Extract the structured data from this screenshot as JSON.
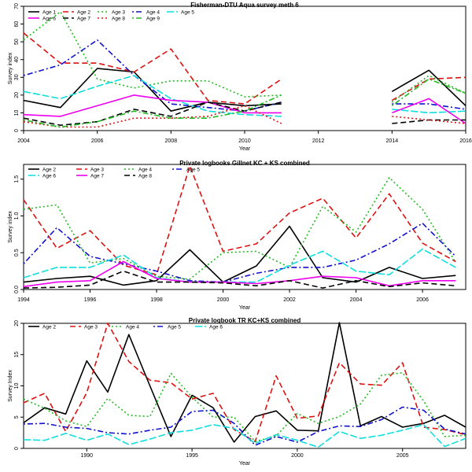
{
  "chart_data": [
    {
      "type": "line",
      "title": "Fisherman-DTU Aqua survey meth 6",
      "xlabel": "Year",
      "ylabel": "Survey index",
      "xlim": [
        2004,
        2016
      ],
      "ylim": [
        0,
        70
      ],
      "xticks": [
        2004,
        2006,
        2008,
        2010,
        2012,
        2014,
        2016
      ],
      "yticks": [
        0,
        10,
        20,
        30,
        40,
        50,
        60,
        70
      ],
      "legend_position": "top-left",
      "legend_columns": 5,
      "x": [
        2004,
        2005,
        2006,
        2007,
        2008,
        2009,
        2010,
        2011,
        2012,
        2013,
        2014,
        2015,
        2016
      ],
      "series": [
        {
          "name": "Age 1",
          "color": "#000000",
          "dash": "solid",
          "values": [
            17,
            13,
            35,
            33,
            11,
            16,
            14,
            15,
            null,
            null,
            22,
            34,
            14
          ]
        },
        {
          "name": "Age 2",
          "color": "#dd1111",
          "dash": "long",
          "values": [
            55,
            38,
            38,
            33,
            46,
            17,
            15,
            29,
            null,
            null,
            17,
            29,
            30
          ]
        },
        {
          "name": "Age 3",
          "color": "#22bb22",
          "dash": "dot",
          "values": [
            51,
            67,
            29,
            24,
            28,
            28,
            19,
            20,
            null,
            null,
            16,
            31,
            21
          ]
        },
        {
          "name": "Age 4",
          "color": "#1111cc",
          "dash": "dotdash",
          "values": [
            31,
            37,
            51,
            31,
            15,
            13,
            11,
            16,
            null,
            null,
            15,
            15,
            12
          ]
        },
        {
          "name": "Age 5",
          "color": "#11dddd",
          "dash": "longdash",
          "values": [
            22,
            18,
            25,
            31,
            18,
            11,
            9,
            8,
            null,
            null,
            12,
            10,
            11
          ]
        },
        {
          "name": "Age 6",
          "color": "#ee00ee",
          "dash": "solid",
          "values": [
            9,
            8,
            14,
            20,
            17,
            16,
            10,
            10,
            null,
            null,
            10,
            18,
            4
          ]
        },
        {
          "name": "Age 7",
          "color": "#000000",
          "dash": "long",
          "values": [
            7,
            3,
            5,
            12,
            8,
            16,
            11,
            16,
            null,
            null,
            4,
            6,
            6
          ]
        },
        {
          "name": "Age 8",
          "color": "#dd1111",
          "dash": "dot",
          "values": [
            5,
            2,
            2,
            7,
            7,
            8,
            14,
            4,
            null,
            null,
            8,
            6,
            4
          ]
        },
        {
          "name": "Age 9",
          "color": "#22bb22",
          "dash": "dotdash",
          "values": [
            6,
            2,
            5,
            11,
            7,
            7,
            11,
            20,
            null,
            null,
            14,
            29,
            21
          ]
        }
      ]
    },
    {
      "type": "line",
      "title": "Private logbooks Gillnet KC + KS combined",
      "xlabel": "Year",
      "ylabel": "Survey index",
      "xlim": [
        1994,
        2007.3
      ],
      "ylim": [
        0,
        1.7
      ],
      "xticks": [
        1994,
        1996,
        1998,
        2000,
        2002,
        2004,
        2006
      ],
      "yticks": [
        0.0,
        0.5,
        1.0,
        1.5
      ],
      "legend_position": "top-left",
      "legend_columns": 4,
      "x": [
        1994,
        1995,
        1996,
        1997,
        1998,
        1999,
        2000,
        2001,
        2002,
        2003,
        2004,
        2005,
        2006,
        2007
      ],
      "series": [
        {
          "name": "Age 2",
          "color": "#000000",
          "dash": "solid",
          "values": [
            0.1,
            0.15,
            0.18,
            0.06,
            0.12,
            0.54,
            0.1,
            0.32,
            0.86,
            0.16,
            0.1,
            0.3,
            0.15,
            0.19
          ]
        },
        {
          "name": "Age 3",
          "color": "#dd1111",
          "dash": "long",
          "values": [
            1.22,
            0.56,
            0.8,
            0.33,
            0.2,
            1.68,
            0.52,
            0.62,
            1.04,
            1.24,
            0.7,
            1.3,
            0.63,
            0.38
          ]
        },
        {
          "name": "Age 4",
          "color": "#22bb22",
          "dash": "dot",
          "values": [
            1.09,
            1.15,
            0.36,
            0.42,
            0.18,
            0.14,
            0.5,
            0.52,
            0.3,
            1.13,
            0.78,
            1.52,
            1.09,
            0.37
          ]
        },
        {
          "name": "Age 5",
          "color": "#1111cc",
          "dash": "dotdash",
          "values": [
            0.35,
            0.84,
            0.45,
            0.35,
            0.25,
            0.12,
            0.1,
            0.22,
            0.3,
            0.3,
            0.4,
            0.62,
            0.9,
            0.45
          ]
        },
        {
          "name": "Age 6",
          "color": "#11dddd",
          "dash": "longdash",
          "values": [
            0.16,
            0.3,
            0.3,
            0.47,
            0.16,
            0.1,
            0.1,
            0.1,
            0.33,
            0.52,
            0.25,
            0.2,
            0.55,
            0.3
          ]
        },
        {
          "name": "Age 7",
          "color": "#ee00ee",
          "dash": "solid",
          "values": [
            0.04,
            0.1,
            0.12,
            0.38,
            0.15,
            0.1,
            0.1,
            0.08,
            0.12,
            0.18,
            0.16,
            0.05,
            0.12,
            0.12
          ]
        },
        {
          "name": "Age 8",
          "color": "#000000",
          "dash": "long",
          "values": [
            0.02,
            0.03,
            0.06,
            0.25,
            0.1,
            0.1,
            0.09,
            0.05,
            0.12,
            0.02,
            0.12,
            0.04,
            0.09,
            0.05
          ]
        }
      ]
    },
    {
      "type": "line",
      "title": "Private logbook TR KC+KS combined",
      "xlabel": "Year",
      "ylabel": "Survey Index",
      "xlim": [
        1987,
        2008
      ],
      "ylim": [
        0,
        20
      ],
      "xticks": [
        1990,
        1995,
        2000,
        2005
      ],
      "yticks": [
        0,
        5,
        10,
        15,
        20
      ],
      "legend_position": "top-left",
      "legend_columns": 5,
      "x": [
        1987,
        1988,
        1989,
        1990,
        1991,
        1992,
        1993,
        1994,
        1995,
        1996,
        1997,
        1998,
        1999,
        2000,
        2001,
        2002,
        2003,
        2004,
        2005,
        2006,
        2007,
        2008
      ],
      "series": [
        {
          "name": "Age 2",
          "color": "#000000",
          "dash": "solid",
          "values": [
            4.1,
            6.5,
            5.5,
            14.0,
            9.0,
            18.2,
            10.0,
            1.9,
            8.5,
            6.5,
            1.0,
            5.1,
            6.0,
            2.9,
            2.8,
            20.1,
            3.6,
            5.1,
            3.4,
            4.0,
            5.3,
            3.4
          ]
        },
        {
          "name": "Age 3",
          "color": "#dd1111",
          "dash": "long",
          "values": [
            7.3,
            8.8,
            2.7,
            8.9,
            20.0,
            13.9,
            10.9,
            10.5,
            7.9,
            8.8,
            3.0,
            1.1,
            11.6,
            4.8,
            5.2,
            13.7,
            10.3,
            10.1,
            13.7,
            3.4,
            3.0,
            2.2
          ]
        },
        {
          "name": "Age 4",
          "color": "#22bb22",
          "dash": "dot",
          "values": [
            7.9,
            6.4,
            4.4,
            3.5,
            8.0,
            5.3,
            5.1,
            12.0,
            8.2,
            5.0,
            5.0,
            1.1,
            2.0,
            5.6,
            4.0,
            5.1,
            7.1,
            11.7,
            12.1,
            7.6,
            1.9,
            2.1
          ]
        },
        {
          "name": "Age 5",
          "color": "#1111cc",
          "dash": "dotdash",
          "values": [
            3.9,
            4.0,
            3.4,
            3.2,
            2.5,
            2.3,
            2.9,
            3.4,
            5.9,
            6.1,
            4.0,
            0.5,
            1.9,
            1.0,
            2.7,
            3.6,
            3.5,
            4.6,
            6.6,
            6.1,
            3.1,
            2.3
          ]
        },
        {
          "name": "Age 6",
          "color": "#11dddd",
          "dash": "longdash",
          "values": [
            1.4,
            1.3,
            2.4,
            1.3,
            2.3,
            0.6,
            1.5,
            2.5,
            2.9,
            3.8,
            3.2,
            0.8,
            2.2,
            1.3,
            0.2,
            2.7,
            1.6,
            2.1,
            2.9,
            3.8,
            0.3,
            1.6
          ]
        }
      ]
    }
  ]
}
